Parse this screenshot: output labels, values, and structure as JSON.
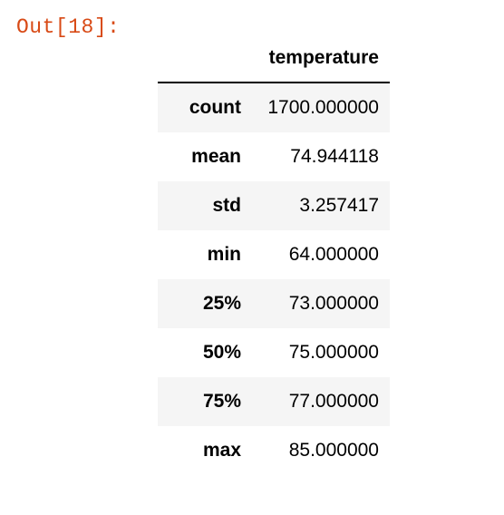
{
  "cell": {
    "prompt": "Out[18]:"
  },
  "table": {
    "index_header": "",
    "columns": [
      "temperature"
    ],
    "rows": [
      {
        "label": "count",
        "value": "1700.000000"
      },
      {
        "label": "mean",
        "value": "74.944118"
      },
      {
        "label": "std",
        "value": "3.257417"
      },
      {
        "label": "min",
        "value": "64.000000"
      },
      {
        "label": "25%",
        "value": "73.000000"
      },
      {
        "label": "50%",
        "value": "75.000000"
      },
      {
        "label": "75%",
        "value": "77.000000"
      },
      {
        "label": "max",
        "value": "85.000000"
      }
    ]
  },
  "colors": {
    "prompt": "#d84a16",
    "stripe": "#f5f5f5",
    "text": "#000000"
  }
}
